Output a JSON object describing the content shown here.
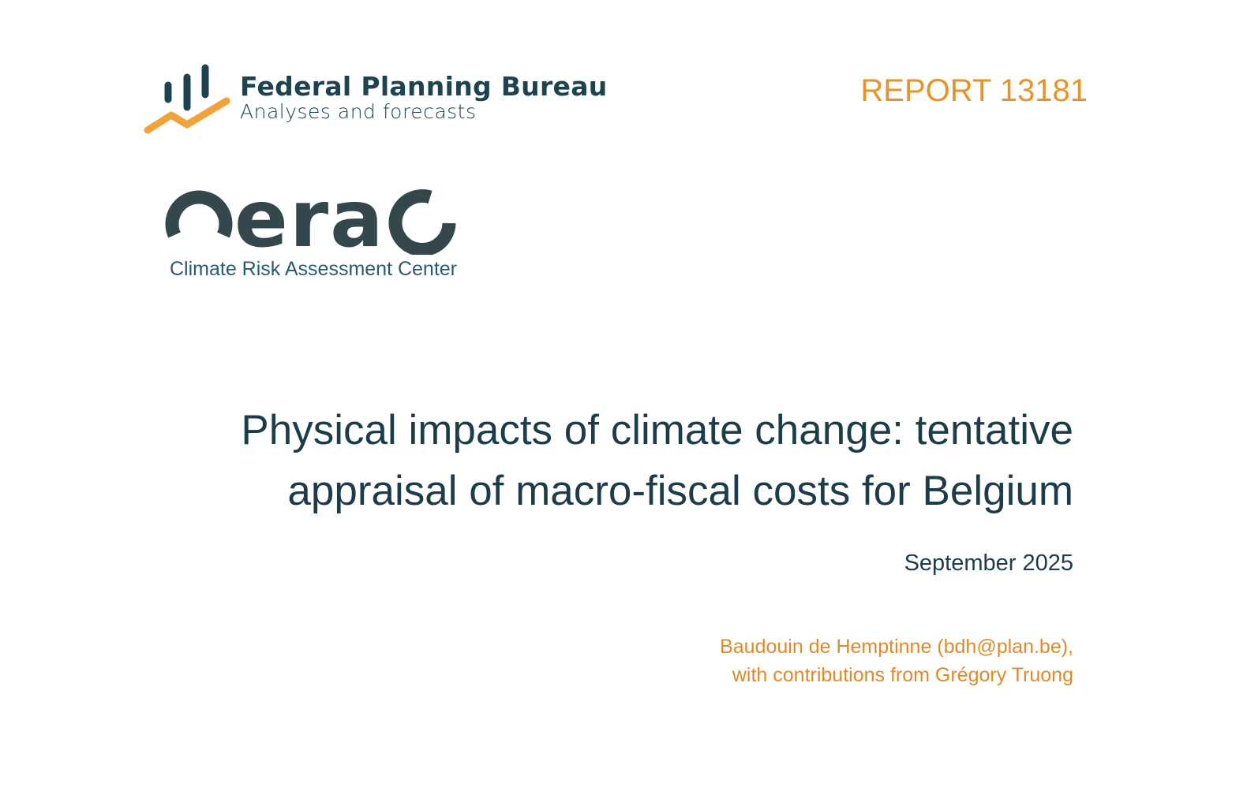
{
  "header": {
    "org_logo_text": "Federal Planning Bureau",
    "org_tagline": "Analyses and forecasts",
    "report_label": "REPORT 13181"
  },
  "partner": {
    "logo_text": "cerac",
    "subtitle": "Climate Risk Assessment Center"
  },
  "title": {
    "line1": "Physical impacts of climate change: tentative",
    "line2": "appraisal of macro-fiscal costs for Belgium"
  },
  "date": "September 2025",
  "authors": {
    "line1": "Baudouin de Hemptinne (bdh@plan.be),",
    "line2": "with contributions from Grégory Truong"
  },
  "colors": {
    "dark_teal": "#1d4250",
    "orange": "#e8922e",
    "orange_logo": "#f2a23a"
  }
}
